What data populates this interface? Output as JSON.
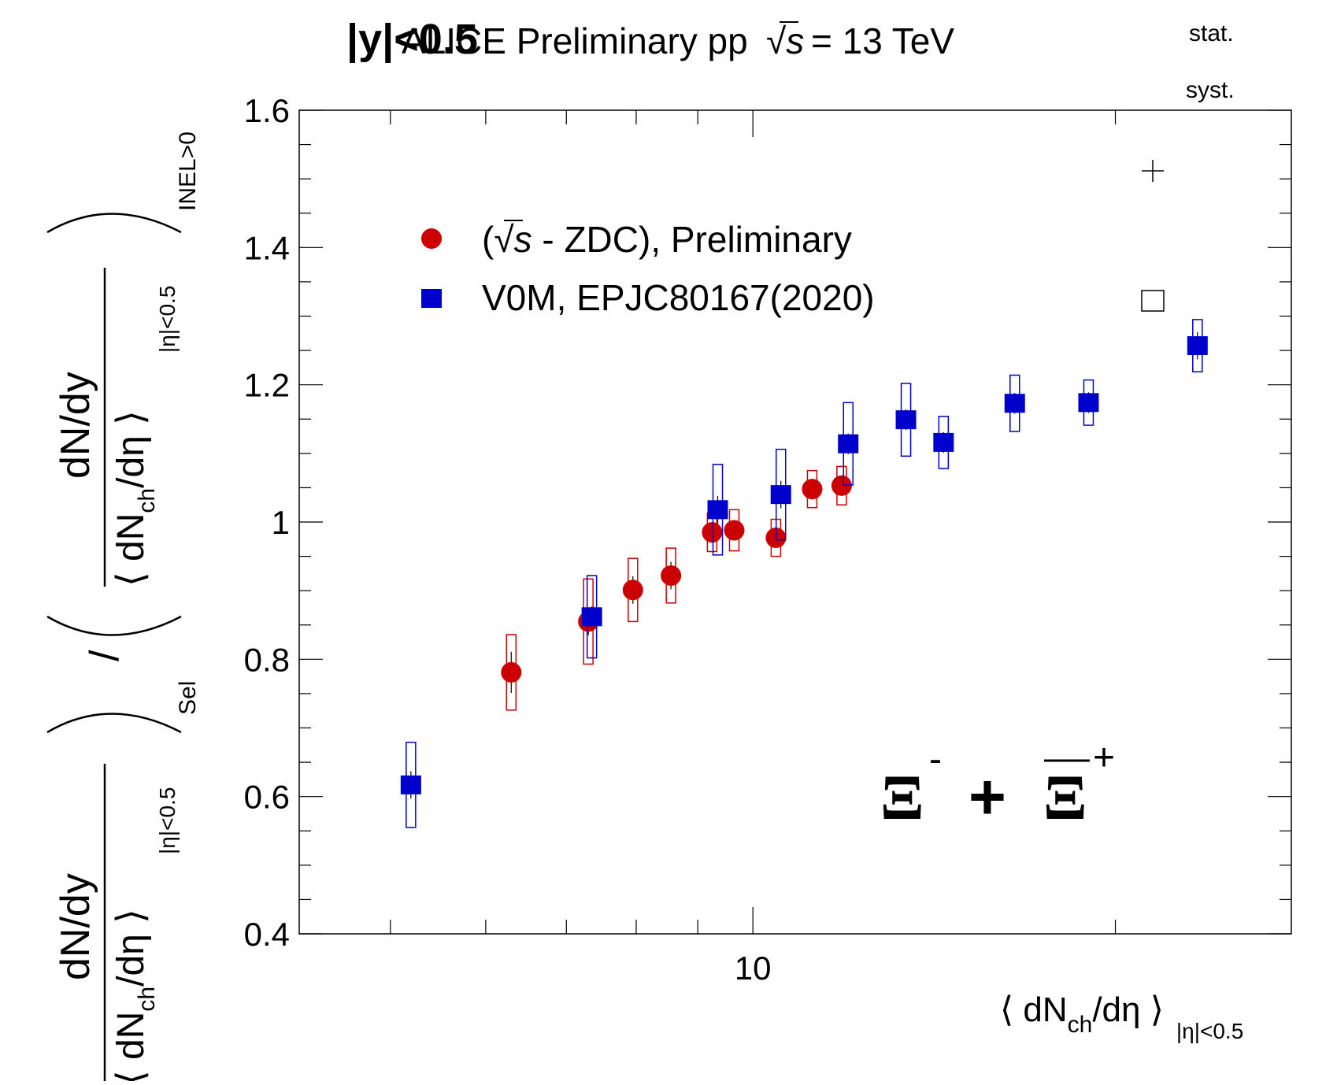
{
  "header": {
    "title": "ALICE Preliminary pp",
    "sqrt_s": "s",
    "energy": "= 13 TeV",
    "rapidity_cut": "|y|<0.5"
  },
  "stat_label": "stat.",
  "syst_label": "syst.",
  "particle_label": {
    "base": "Ξ",
    "minus": "-",
    "plus_sign": "+",
    "plus": "+"
  },
  "legend": [
    {
      "prefix": "(",
      "sqrt": "s",
      "text": " - ZDC), Preliminary"
    },
    {
      "text": "V0M, EPJC80167(2020)"
    }
  ],
  "axis": {
    "x_label_main": "⟨ dN",
    "x_label_sub": "ch",
    "x_label_end": "/dη ⟩",
    "x_label_range": "|η|<0.5",
    "y_num_label": "dN/dy",
    "y_den_label": "⟨ dN",
    "y_den_sub": "ch",
    "y_den_end": "/dη ⟩",
    "y_eta_range": "|η|<0.5",
    "y_sel": "Sel",
    "y_inel": "INEL>0",
    "y_slash": "/"
  },
  "chart_data": {
    "type": "scatter",
    "x_scale": "log",
    "xlim": [
      4.2,
      28
    ],
    "ylim": [
      0.4,
      1.6
    ],
    "x_tick_labels": [
      "10"
    ],
    "y_ticks": [
      0.4,
      0.6,
      0.8,
      1,
      1.2,
      1.4,
      1.6
    ],
    "y_tick_labels": [
      "0.4",
      "0.6",
      "0.8",
      "1",
      "1.2",
      "1.4",
      "1.6"
    ],
    "colors": {
      "zdc": "#cc0000",
      "v0m": "#0000cc"
    },
    "series": [
      {
        "name": "(√s - ZDC), Preliminary",
        "marker": "circle",
        "x": [
          6.3,
          7.3,
          7.95,
          8.55,
          9.25,
          9.65,
          10.45,
          11.2,
          11.85
        ],
        "y": [
          0.781,
          0.855,
          0.901,
          0.922,
          0.985,
          0.988,
          0.977,
          1.048,
          1.053
        ],
        "stat_err": [
          0.03,
          0.02,
          0.02,
          0.02,
          0.015,
          0.015,
          0.015,
          0.015,
          0.015
        ],
        "syst_err": [
          0.055,
          0.062,
          0.046,
          0.04,
          0.028,
          0.03,
          0.027,
          0.027,
          0.028
        ]
      },
      {
        "name": "V0M, EPJC80167(2020)",
        "marker": "square",
        "x": [
          5.2,
          7.35,
          9.35,
          10.55,
          12.0,
          13.4,
          14.4,
          16.5,
          19.0,
          23.4
        ],
        "y": [
          0.617,
          0.862,
          1.018,
          1.04,
          1.114,
          1.149,
          1.116,
          1.173,
          1.174,
          1.257
        ],
        "stat_err": [
          0.02,
          0.015,
          0.02,
          0.02,
          0.015,
          0.015,
          0.015,
          0.015,
          0.015,
          0.02
        ],
        "syst_err": [
          0.062,
          0.06,
          0.066,
          0.066,
          0.06,
          0.053,
          0.038,
          0.041,
          0.033,
          0.038
        ]
      }
    ]
  }
}
